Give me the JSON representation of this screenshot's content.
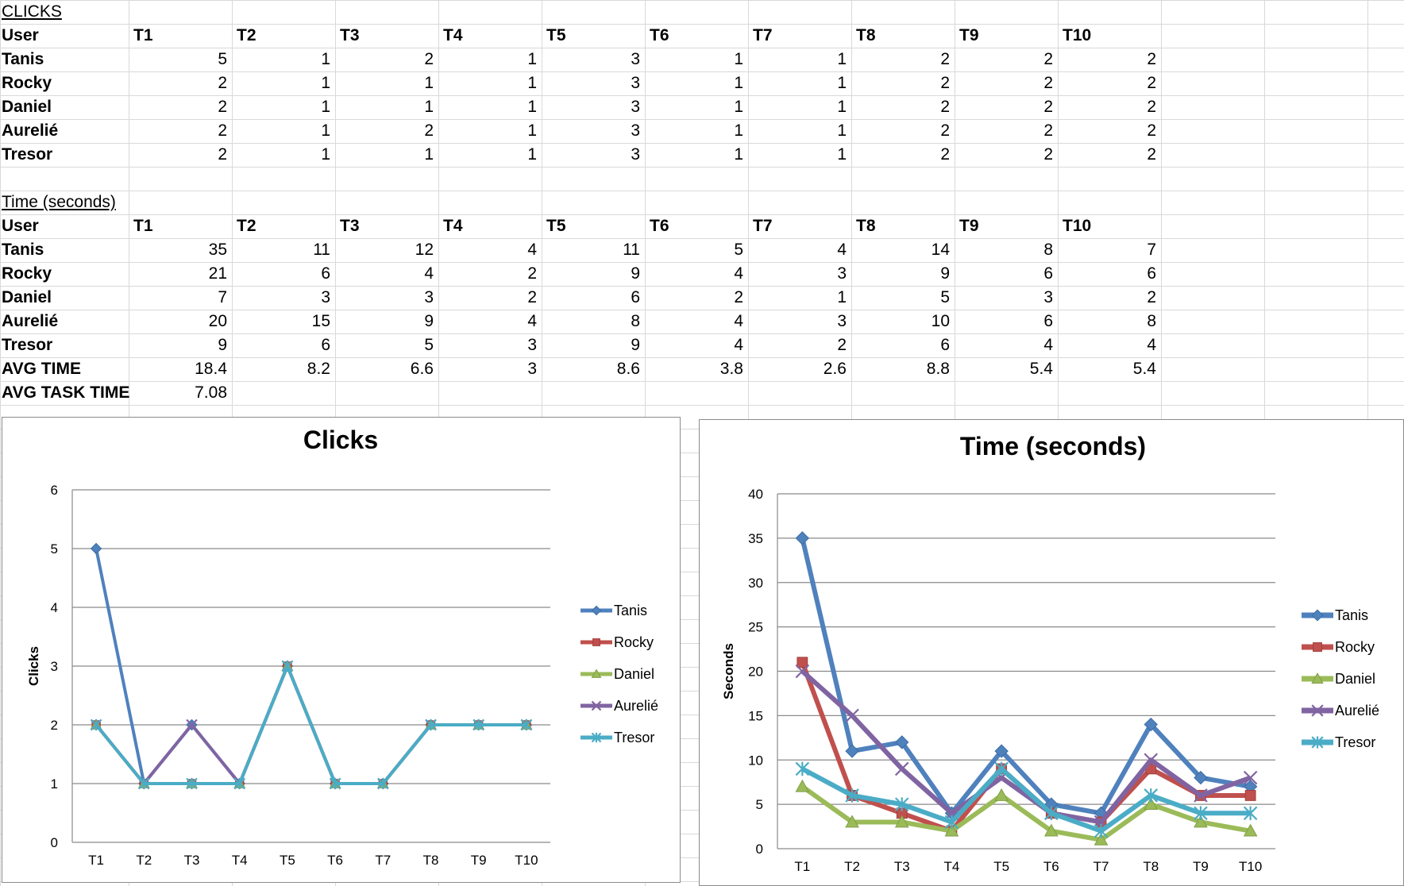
{
  "spreadsheet": {
    "clicks_title": "CLICKS",
    "time_title": "Time (seconds)",
    "user_header": "User",
    "task_headers": [
      "T1",
      "T2",
      "T3",
      "T4",
      "T5",
      "T6",
      "T7",
      "T8",
      "T9",
      "T10"
    ],
    "clicks_rows": [
      {
        "user": "Tanis",
        "values": [
          "5",
          "1",
          "2",
          "1",
          "3",
          "1",
          "1",
          "2",
          "2",
          "2"
        ]
      },
      {
        "user": "Rocky",
        "values": [
          "2",
          "1",
          "1",
          "1",
          "3",
          "1",
          "1",
          "2",
          "2",
          "2"
        ]
      },
      {
        "user": "Daniel",
        "values": [
          "2",
          "1",
          "1",
          "1",
          "3",
          "1",
          "1",
          "2",
          "2",
          "2"
        ]
      },
      {
        "user": "Aurelié",
        "values": [
          "2",
          "1",
          "2",
          "1",
          "3",
          "1",
          "1",
          "2",
          "2",
          "2"
        ]
      },
      {
        "user": "Tresor",
        "values": [
          "2",
          "1",
          "1",
          "1",
          "3",
          "1",
          "1",
          "2",
          "2",
          "2"
        ]
      }
    ],
    "time_rows": [
      {
        "user": "Tanis",
        "values": [
          "35",
          "11",
          "12",
          "4",
          "11",
          "5",
          "4",
          "14",
          "8",
          "7"
        ]
      },
      {
        "user": "Rocky",
        "values": [
          "21",
          "6",
          "4",
          "2",
          "9",
          "4",
          "3",
          "9",
          "6",
          "6"
        ]
      },
      {
        "user": "Daniel",
        "values": [
          "7",
          "3",
          "3",
          "2",
          "6",
          "2",
          "1",
          "5",
          "3",
          "2"
        ]
      },
      {
        "user": "Aurelié",
        "values": [
          "20",
          "15",
          "9",
          "4",
          "8",
          "4",
          "3",
          "10",
          "6",
          "8"
        ]
      },
      {
        "user": "Tresor",
        "values": [
          "9",
          "6",
          "5",
          "3",
          "9",
          "4",
          "2",
          "6",
          "4",
          "4"
        ]
      },
      {
        "user": "AVG TIME",
        "values": [
          "18.4",
          "8.2",
          "6.6",
          "3",
          "8.6",
          "3.8",
          "2.6",
          "8.8",
          "5.4",
          "5.4"
        ]
      },
      {
        "user": "AVG TASK TIME",
        "values": [
          "7.08"
        ]
      }
    ]
  },
  "chart_data": [
    {
      "type": "line",
      "title": "Clicks",
      "xlabel": "",
      "ylabel": "Clicks",
      "ylim": [
        0,
        6
      ],
      "yticks": [
        0,
        1,
        2,
        3,
        4,
        5,
        6
      ],
      "grid": true,
      "legend": "right",
      "categories": [
        "T1",
        "T2",
        "T3",
        "T4",
        "T5",
        "T6",
        "T7",
        "T8",
        "T9",
        "T10"
      ],
      "series": [
        {
          "name": "Tanis",
          "color": "#4F81BD",
          "marker": "diamond",
          "values": [
            5,
            1,
            2,
            1,
            3,
            1,
            1,
            2,
            2,
            2
          ]
        },
        {
          "name": "Rocky",
          "color": "#C0504D",
          "marker": "square",
          "values": [
            2,
            1,
            1,
            1,
            3,
            1,
            1,
            2,
            2,
            2
          ]
        },
        {
          "name": "Daniel",
          "color": "#9BBB59",
          "marker": "triangle",
          "values": [
            2,
            1,
            1,
            1,
            3,
            1,
            1,
            2,
            2,
            2
          ]
        },
        {
          "name": "Aurelié",
          "color": "#8064A2",
          "marker": "x",
          "values": [
            2,
            1,
            2,
            1,
            3,
            1,
            1,
            2,
            2,
            2
          ]
        },
        {
          "name": "Tresor",
          "color": "#4BACC6",
          "marker": "star",
          "values": [
            2,
            1,
            1,
            1,
            3,
            1,
            1,
            2,
            2,
            2
          ]
        }
      ]
    },
    {
      "type": "line",
      "title": "Time (seconds)",
      "xlabel": "",
      "ylabel": "Seconds",
      "ylim": [
        0,
        40
      ],
      "yticks": [
        0,
        5,
        10,
        15,
        20,
        25,
        30,
        35,
        40
      ],
      "grid": true,
      "legend": "right",
      "categories": [
        "T1",
        "T2",
        "T3",
        "T4",
        "T5",
        "T6",
        "T7",
        "T8",
        "T9",
        "T10"
      ],
      "series": [
        {
          "name": "Tanis",
          "color": "#4F81BD",
          "marker": "diamond",
          "values": [
            35,
            11,
            12,
            4,
            11,
            5,
            4,
            14,
            8,
            7
          ]
        },
        {
          "name": "Rocky",
          "color": "#C0504D",
          "marker": "square",
          "values": [
            21,
            6,
            4,
            2,
            9,
            4,
            3,
            9,
            6,
            6
          ]
        },
        {
          "name": "Daniel",
          "color": "#9BBB59",
          "marker": "triangle",
          "values": [
            7,
            3,
            3,
            2,
            6,
            2,
            1,
            5,
            3,
            2
          ]
        },
        {
          "name": "Aurelié",
          "color": "#8064A2",
          "marker": "x",
          "values": [
            20,
            15,
            9,
            4,
            8,
            4,
            3,
            10,
            6,
            8
          ]
        },
        {
          "name": "Tresor",
          "color": "#4BACC6",
          "marker": "star",
          "values": [
            9,
            6,
            5,
            3,
            9,
            4,
            2,
            6,
            4,
            4
          ]
        }
      ]
    }
  ]
}
